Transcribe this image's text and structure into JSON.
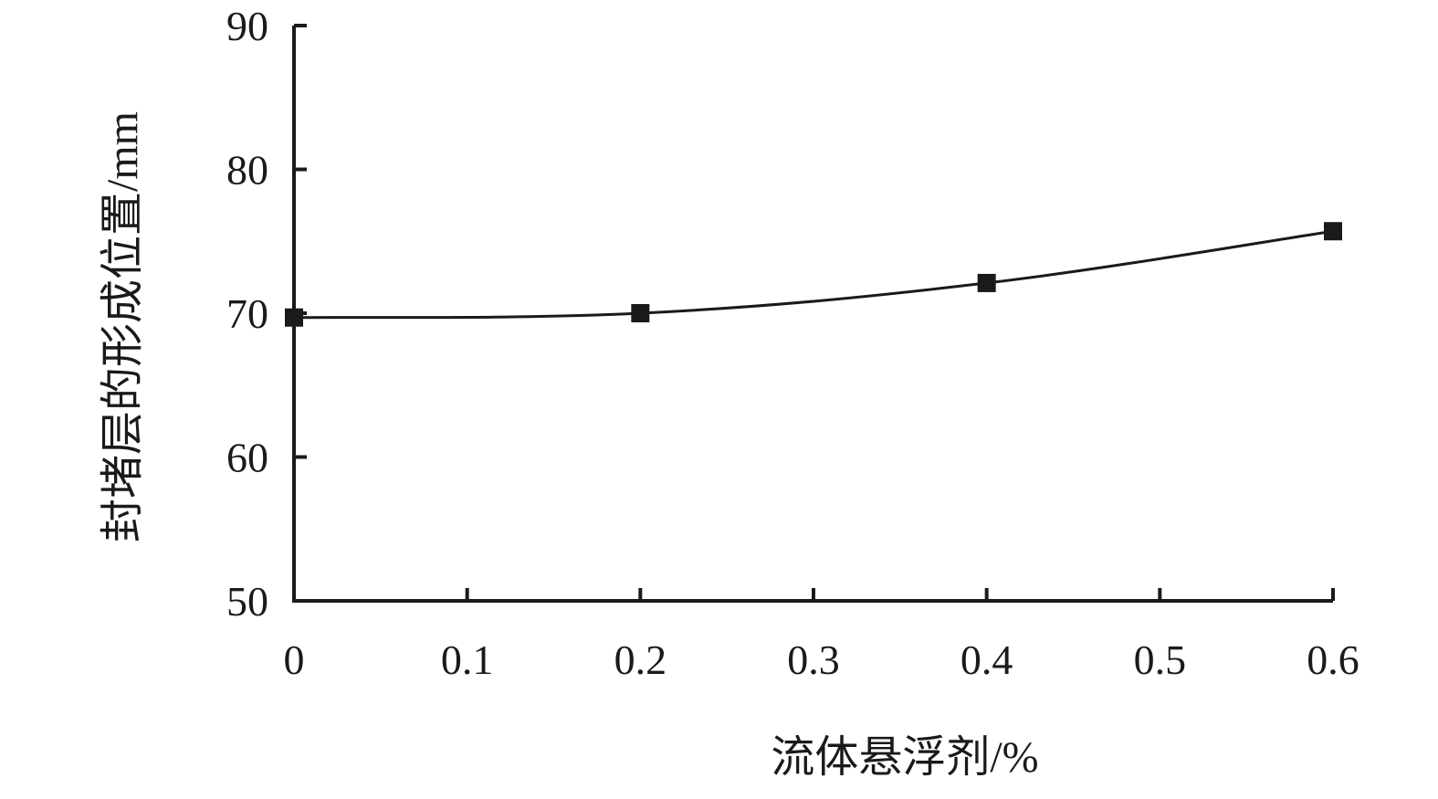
{
  "chart_data": {
    "type": "line",
    "title": "",
    "xlabel": "流体悬浮剂/%",
    "ylabel": "封堵层的形成位置/mm",
    "x": [
      0,
      0.2,
      0.4,
      0.6
    ],
    "series": [
      {
        "values": [
          69.7,
          70.0,
          72.1,
          75.7
        ]
      }
    ],
    "xlim": [
      0,
      0.6
    ],
    "ylim": [
      50,
      90
    ],
    "xticks": [
      "0",
      "0.1",
      "0.2",
      "0.3",
      "0.4",
      "0.5",
      "0.6"
    ],
    "yticks": [
      "50",
      "60",
      "70",
      "80",
      "90"
    ],
    "xtick_values": [
      0,
      0.1,
      0.2,
      0.3,
      0.4,
      0.5,
      0.6
    ],
    "ytick_values": [
      50,
      60,
      70,
      80,
      90
    ],
    "grid": false,
    "marker": "square",
    "colors": {
      "line": "#1a1a1a",
      "marker": "#1a1a1a",
      "axis": "#1a1a1a"
    }
  }
}
